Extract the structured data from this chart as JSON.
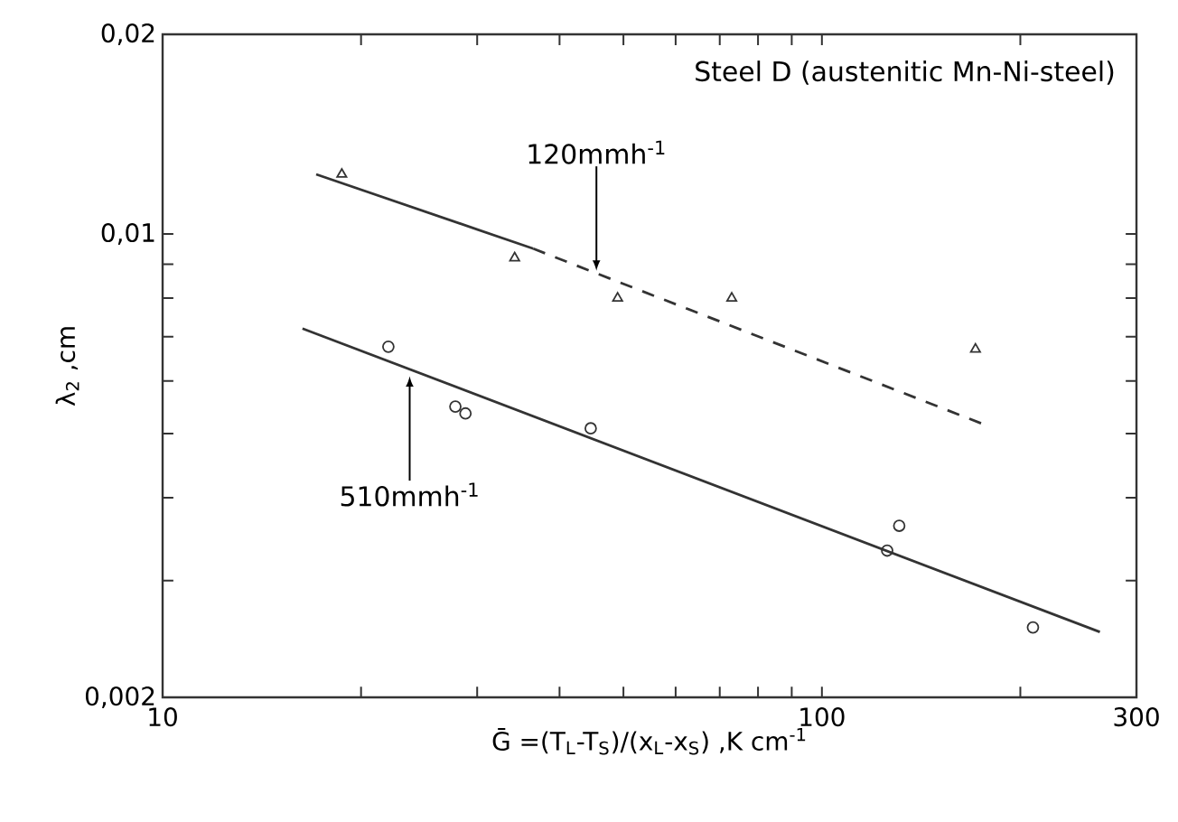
{
  "chart_data": {
    "type": "scatter",
    "log": "xy",
    "xlabel": "Ḡ =(T$_{L}$-T$_{S}$)/(x$_{L}$-x$_{S}$) ,K cm$^{-1}$",
    "ylabel": "λ$_{2}$ ,cm",
    "xlim": [
      10,
      300
    ],
    "ylim": [
      0.002,
      0.02
    ],
    "xticks": [
      10,
      {
        "value": 20,
        "label": null
      },
      {
        "value": 30,
        "label": null
      },
      {
        "value": 40,
        "label": null
      },
      {
        "value": 50,
        "label": null
      },
      {
        "value": 60,
        "label": null
      },
      {
        "value": 70,
        "label": null
      },
      {
        "value": 80,
        "label": null
      },
      {
        "value": 90,
        "label": null
      },
      100,
      {
        "value": 200,
        "label": null
      },
      300
    ],
    "yticks": [
      {
        "value": 0.002,
        "label": "0,002"
      },
      {
        "value": 0.003,
        "label": null
      },
      {
        "value": 0.004,
        "label": null
      },
      {
        "value": 0.005,
        "label": null
      },
      {
        "value": 0.006,
        "label": null
      },
      {
        "value": 0.007,
        "label": null
      },
      {
        "value": 0.008,
        "label": null
      },
      {
        "value": 0.009,
        "label": null
      },
      {
        "value": 0.01,
        "label": "0,01"
      },
      {
        "value": 0.02,
        "label": "0,02"
      }
    ],
    "series": [
      {
        "marker": "triangle",
        "color": "#333333",
        "x": [
          18.7,
          34.2,
          49,
          73,
          171
        ],
        "values": [
          0.0123,
          0.0092,
          0.008,
          0.008,
          0.0067
        ]
      },
      {
        "type": "line",
        "marker": "none",
        "line_style": "solid",
        "color": "#333333",
        "x": [
          17.1,
          36.5
        ],
        "values": [
          0.0123,
          0.0095
        ]
      },
      {
        "type": "line",
        "marker": "none",
        "line_style": "dashed",
        "color": "#333333",
        "x": [
          36.5,
          177
        ],
        "values": [
          0.0095,
          0.00515
        ]
      },
      {
        "marker": "circle",
        "color": "#333333",
        "x": [
          22.0,
          27.8,
          28.8,
          44.6,
          125.6,
          131,
          209
        ],
        "values": [
          0.00676,
          0.00549,
          0.00536,
          0.00509,
          0.00333,
          0.00363,
          0.00255
        ]
      },
      {
        "type": "line",
        "marker": "none",
        "line_style": "solid",
        "color": "#333333",
        "x": [
          16.3,
          264
        ],
        "values": [
          0.0072,
          0.00251
        ]
      }
    ],
    "annotations": [
      "Steel D (austenitic Mn-Ni-steel)",
      {
        "text": "120mmh$^{-1}$",
        "x": 45.5,
        "y": 0.0088
      },
      {
        "text": "510mmh$^{-1}$",
        "x": 23.7,
        "y": 0.0061
      }
    ]
  }
}
